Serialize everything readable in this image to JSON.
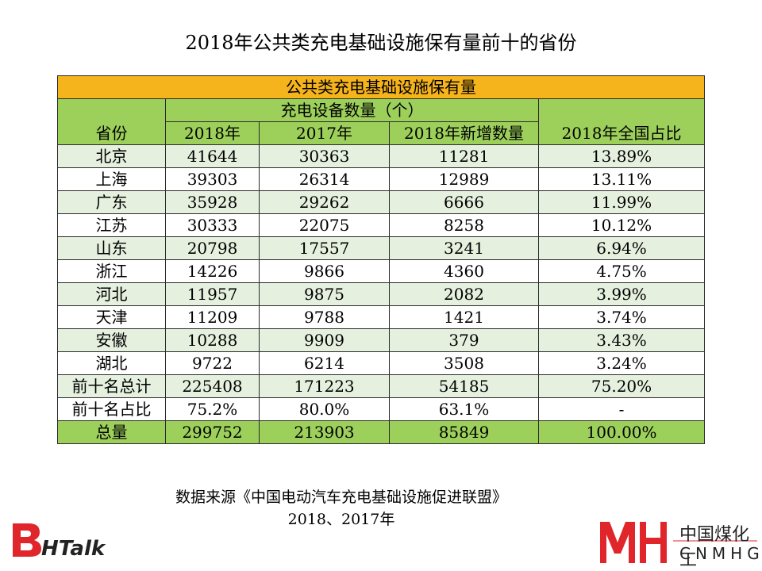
{
  "page_title": "2018年公共类充电基础设施保有量前十的省份",
  "table": {
    "group_header": "公共类充电基础设施保有量",
    "province_header": "省份",
    "count_header": "充电设备数量（个）",
    "share_header": "2018年全国占比",
    "sub_headers": [
      "2018年",
      "2017年",
      "2018年新增数量"
    ]
  },
  "chart_data": {
    "type": "table",
    "title": "2018年公共类充电基础设施保有量前十的省份",
    "columns": [
      "省份",
      "2018年",
      "2017年",
      "2018年新增数量",
      "2018年全国占比"
    ],
    "rows": [
      [
        "北京",
        "41644",
        "30363",
        "11281",
        "13.89%"
      ],
      [
        "上海",
        "39303",
        "26314",
        "12989",
        "13.11%"
      ],
      [
        "广东",
        "35928",
        "29262",
        "6666",
        "11.99%"
      ],
      [
        "江苏",
        "30333",
        "22075",
        "8258",
        "10.12%"
      ],
      [
        "山东",
        "20798",
        "17557",
        "3241",
        "6.94%"
      ],
      [
        "浙江",
        "14226",
        "9866",
        "4360",
        "4.75%"
      ],
      [
        "河北",
        "11957",
        "9875",
        "2082",
        "3.99%"
      ],
      [
        "天津",
        "11209",
        "9788",
        "1421",
        "3.74%"
      ],
      [
        "安徽",
        "10288",
        "9909",
        "379",
        "3.43%"
      ],
      [
        "湖北",
        "9722",
        "6214",
        "3508",
        "3.24%"
      ],
      [
        "前十名总计",
        "225408",
        "171223",
        "54185",
        "75.20%"
      ],
      [
        "前十名占比",
        "75.2%",
        "80.0%",
        "63.1%",
        "-"
      ],
      [
        "总量",
        "299752",
        "213903",
        "85849",
        "100.00%"
      ]
    ]
  },
  "source": {
    "line1": "数据来源《中国电动汽车充电基础设施促进联盟》",
    "line2": "2018、2017年"
  },
  "logos": {
    "left_text": "HTalk",
    "right_cn": "中国煤化工",
    "right_en": "CNMHG"
  },
  "colors": {
    "header_orange": "#f5b31c",
    "header_green": "#9dcf5b",
    "row_light": "#e6f0df",
    "logo_red": "#e0262b"
  }
}
